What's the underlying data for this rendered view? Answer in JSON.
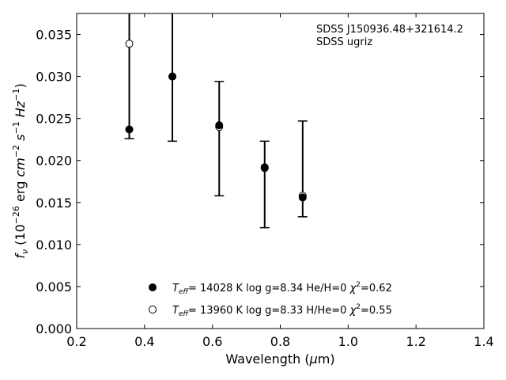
{
  "chart_data": {
    "type": "scatter",
    "title": "",
    "xlabel": "Wavelength (μm)",
    "ylabel": "f_ν (10^-26 erg cm^-2 s^-1 Hz^-1)",
    "xlim": [
      0.2,
      1.4
    ],
    "ylim": [
      0.0,
      0.0375
    ],
    "x_ticks": [
      "0.2",
      "0.4",
      "0.6",
      "0.8",
      "1.0",
      "1.2",
      "1.4"
    ],
    "y_ticks": [
      "0.000",
      "0.005",
      "0.010",
      "0.015",
      "0.020",
      "0.025",
      "0.030",
      "0.035"
    ],
    "annotation": [
      "SDSS J150936.48+321614.2",
      "SDSS ugriz"
    ],
    "observed_errors": [
      {
        "x": 0.355,
        "low": 0.0226,
        "high": 0.0375,
        "cap_low": true,
        "cap_high": false
      },
      {
        "x": 0.482,
        "low": 0.0223,
        "high": 0.0375,
        "cap_low": true,
        "cap_high": false
      },
      {
        "x": 0.62,
        "low": 0.0158,
        "high": 0.0294,
        "cap_low": true,
        "cap_high": true
      },
      {
        "x": 0.754,
        "low": 0.012,
        "high": 0.0223,
        "cap_low": true,
        "cap_high": true
      },
      {
        "x": 0.866,
        "low": 0.0133,
        "high": 0.0247,
        "cap_low": true,
        "cap_high": true
      }
    ],
    "series": [
      {
        "name": "T_eff= 14028 K  log g=8.34  He/H=0  χ²=0.62",
        "marker": "filled",
        "x": [
          0.355,
          0.482,
          0.62,
          0.754,
          0.866
        ],
        "y": [
          0.0237,
          0.03,
          0.0242,
          0.0192,
          0.0156
        ]
      },
      {
        "name": "T_eff= 13960 K  log g=8.33  H/He=0  χ²=0.55",
        "marker": "open",
        "x": [
          0.355,
          0.482,
          0.62,
          0.754,
          0.866
        ],
        "y": [
          0.0339,
          0.03,
          0.024,
          0.0191,
          0.0158
        ]
      }
    ],
    "legend": [
      {
        "marker": "filled",
        "teff_value": "= 14028 K  log g=8.34  He/H=0  ",
        "chi_value": "=0.62"
      },
      {
        "marker": "open",
        "teff_value": "= 13960 K  log g=8.33  H/He=0  ",
        "chi_value": "=0.55"
      }
    ],
    "legend_position": "lower-center",
    "grid": false
  }
}
